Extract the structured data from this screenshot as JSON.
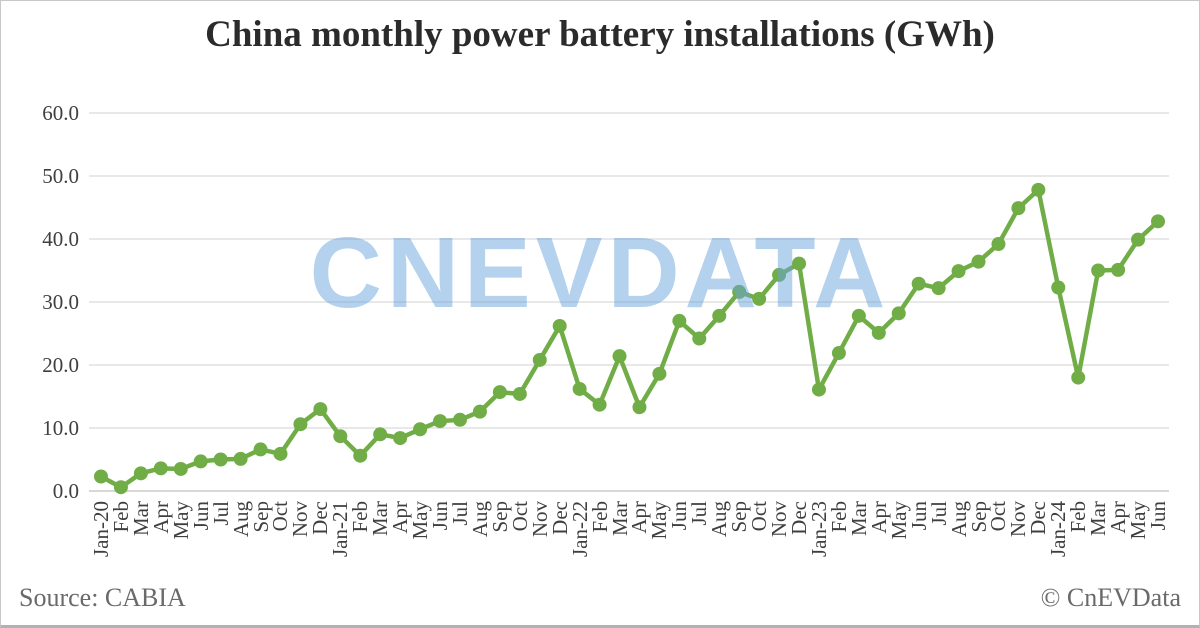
{
  "title": "China monthly power battery installations (GWh)",
  "watermark": {
    "text": "CNEVDATA",
    "color": "#6ca4de",
    "opacity": 0.5
  },
  "footer": {
    "source": "Source: CABIA",
    "copyright": "© CnEVData"
  },
  "chart_data": {
    "type": "line",
    "title": "China monthly power battery installations (GWh)",
    "categories": [
      "Jan-20",
      "Feb",
      "Mar",
      "Apr",
      "May",
      "Jun",
      "Jul",
      "Aug",
      "Sep",
      "Oct",
      "Nov",
      "Dec",
      "Jan-21",
      "Feb",
      "Mar",
      "Apr",
      "May",
      "Jun",
      "Jul",
      "Aug",
      "Sep",
      "Oct",
      "Nov",
      "Dec",
      "Jan-22",
      "Feb",
      "Mar",
      "Apr",
      "May",
      "Jun",
      "Jul",
      "Aug",
      "Sep",
      "Oct",
      "Nov",
      "Dec",
      "Jan-23",
      "Feb",
      "Mar",
      "Apr",
      "May",
      "Jun",
      "Jul",
      "Aug",
      "Sep",
      "Oct",
      "Nov",
      "Dec",
      "Jan-24",
      "Feb",
      "Mar",
      "Apr",
      "May",
      "Jun"
    ],
    "values": [
      2.3,
      0.6,
      2.8,
      3.6,
      3.5,
      4.7,
      5.0,
      5.1,
      6.6,
      5.9,
      10.6,
      13.0,
      8.7,
      5.6,
      9.0,
      8.4,
      9.8,
      11.1,
      11.3,
      12.6,
      15.7,
      15.4,
      20.8,
      26.2,
      16.2,
      13.7,
      21.4,
      13.3,
      18.6,
      27.0,
      24.2,
      27.8,
      31.6,
      30.5,
      34.3,
      36.1,
      16.1,
      21.9,
      27.8,
      25.1,
      28.2,
      32.9,
      32.2,
      34.9,
      36.4,
      39.2,
      44.9,
      47.8,
      32.3,
      18.0,
      35.0,
      35.1,
      39.9,
      42.8
    ],
    "xlabel": "",
    "ylabel": "",
    "ylim": [
      0,
      60
    ],
    "ytick_step": 10,
    "ytick_format_decimals": 1,
    "grid": true,
    "legend": "none",
    "series_name": "Monthly power battery installations (GWh)",
    "series_color": "#70ad47",
    "gridline_color": "#d9d9d9",
    "axis_color": "#c0c0c0"
  }
}
